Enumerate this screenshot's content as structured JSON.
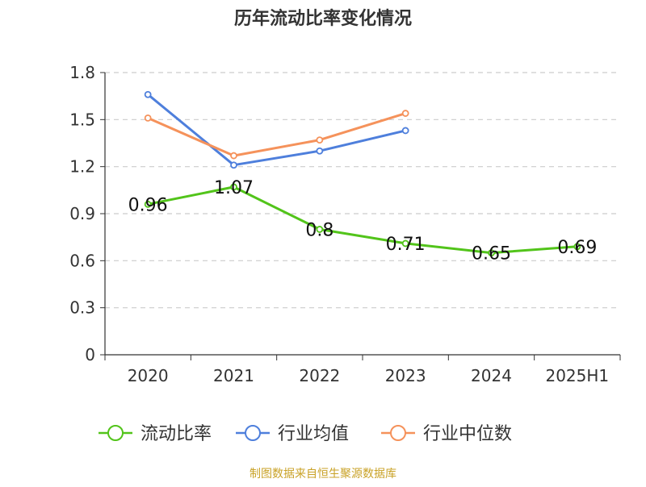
{
  "chart_data": {
    "type": "line",
    "title": "历年流动比率变化情况",
    "categories": [
      "2020",
      "2021",
      "2022",
      "2023",
      "2024",
      "2025H1"
    ],
    "ylim": [
      0,
      1.8
    ],
    "yticks": [
      "0",
      "0.3",
      "0.6",
      "0.9",
      "1.2",
      "1.5",
      "1.8"
    ],
    "grid": true,
    "legend_position": "bottom",
    "series": [
      {
        "name": "流动比率",
        "color": "#52c41a",
        "values": [
          0.96,
          1.07,
          0.8,
          0.71,
          0.65,
          0.69
        ],
        "labels": [
          "0.96",
          "1.07",
          "0.8",
          "0.71",
          "0.65",
          "0.69"
        ],
        "show_labels": true
      },
      {
        "name": "行业均值",
        "color": "#4e7fdc",
        "values": [
          1.66,
          1.21,
          1.3,
          1.43,
          null,
          null
        ],
        "show_labels": false
      },
      {
        "name": "行业中位数",
        "color": "#f5925b",
        "values": [
          1.51,
          1.27,
          1.37,
          1.54,
          null,
          null
        ],
        "show_labels": false
      }
    ],
    "source": "制图数据来自恒生聚源数据库"
  }
}
